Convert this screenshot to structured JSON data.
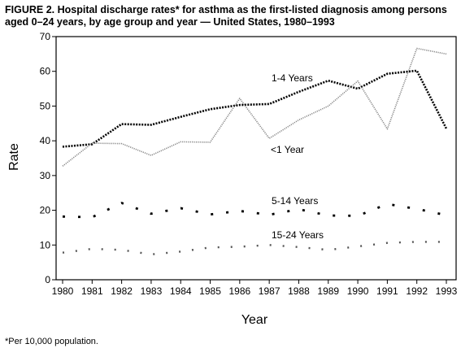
{
  "title": "FIGURE 2. Hospital discharge rates* for asthma as the first-listed diagnosis among persons aged 0–24 years, by age group and year — United States, 1980–1993",
  "footnote": "*Per 10,000 population.",
  "chart_data": {
    "type": "line",
    "title": "FIGURE 2. Hospital discharge rates* for asthma as the first-listed diagnosis among persons aged 0–24 years, by age group and year — United States, 1980–1993",
    "xlabel": "Year",
    "ylabel": "Rate",
    "x": [
      1980,
      1981,
      1982,
      1983,
      1984,
      1985,
      1986,
      1987,
      1988,
      1989,
      1990,
      1991,
      1992,
      1993
    ],
    "ylim": [
      0,
      70
    ],
    "yticks": [
      0,
      10,
      20,
      30,
      40,
      50,
      60,
      70
    ],
    "grid": false,
    "legend": "inline labels",
    "series": [
      {
        "name": "1-4 Years",
        "style": "dense-dotted",
        "color": "#000000",
        "values": [
          38.3,
          39.0,
          44.8,
          44.6,
          46.9,
          49.1,
          50.3,
          50.6,
          54.1,
          57.3,
          55.0,
          59.3,
          60.2,
          43.5
        ]
      },
      {
        "name": "<1 Year",
        "style": "fine-dotted",
        "color": "#888888",
        "values": [
          32.7,
          39.3,
          39.2,
          35.8,
          39.7,
          39.6,
          52.2,
          40.7,
          46.0,
          50.0,
          57.2,
          43.4,
          66.6,
          65.0
        ]
      },
      {
        "name": "5-14 Years",
        "style": "sparse-dashed",
        "color": "#000000",
        "values": [
          18.2,
          18.0,
          22.1,
          19.0,
          20.6,
          18.8,
          19.8,
          18.7,
          20.3,
          18.5,
          18.4,
          21.8,
          20.4,
          18.6
        ]
      },
      {
        "name": "15-24 Years",
        "style": "sparse-dotted",
        "color": "#555555",
        "values": [
          7.8,
          8.9,
          8.6,
          7.3,
          8.1,
          9.3,
          9.5,
          10.0,
          9.4,
          8.6,
          9.6,
          10.6,
          10.9,
          10.9
        ]
      }
    ],
    "labels": {
      "one_four": "1-4 Years",
      "under_one": "<1 Year",
      "five_fourteen": "5-14 Years",
      "fifteen_24": "15-24 Years"
    }
  }
}
